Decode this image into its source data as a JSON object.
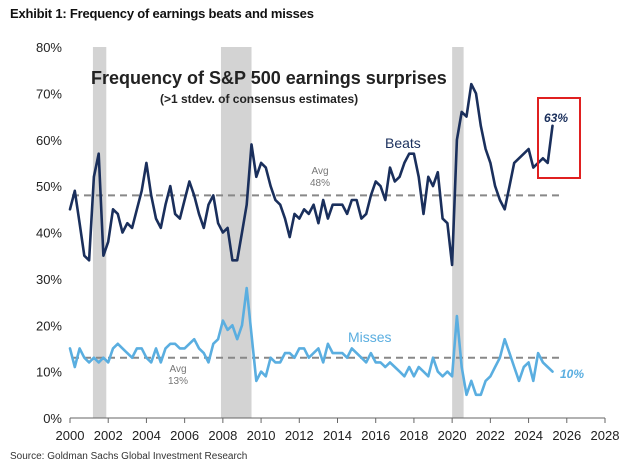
{
  "exhibit_title": "Exhibit 1: Frequency of earnings beats and misses",
  "source": "Source: Goldman Sachs Global Investment Research",
  "chart_data": {
    "type": "line",
    "title": "Frequency of S&P 500 earnings surprises",
    "subtitle": "(>1 stdev. of consensus estimates)",
    "xlabel": "",
    "ylabel": "",
    "xlim": [
      2000,
      2028
    ],
    "ylim": [
      0,
      80
    ],
    "x_ticks": [
      "2000",
      "2002",
      "2004",
      "2006",
      "2008",
      "2010",
      "2012",
      "2014",
      "2016",
      "2018",
      "2020",
      "2022",
      "2024",
      "2026",
      "2028"
    ],
    "y_ticks": [
      "0%",
      "10%",
      "20%",
      "30%",
      "40%",
      "50%",
      "60%",
      "70%",
      "80%"
    ],
    "recessions": [
      [
        2001.2,
        2001.9
      ],
      [
        2007.9,
        2009.5
      ],
      [
        2020.0,
        2020.6
      ]
    ],
    "colors": {
      "beats": "#1a2f5c",
      "misses": "#5aaee0",
      "avg": "#888888",
      "recession": "#d3d3d3",
      "highlight": "#e02020"
    },
    "series": [
      {
        "name": "Beats",
        "x": [
          2000.0,
          2000.25,
          2000.5,
          2000.75,
          2001.0,
          2001.25,
          2001.5,
          2001.75,
          2002.0,
          2002.25,
          2002.5,
          2002.75,
          2003.0,
          2003.25,
          2003.5,
          2003.75,
          2004.0,
          2004.25,
          2004.5,
          2004.75,
          2005.0,
          2005.25,
          2005.5,
          2005.75,
          2006.0,
          2006.25,
          2006.5,
          2006.75,
          2007.0,
          2007.25,
          2007.5,
          2007.75,
          2008.0,
          2008.25,
          2008.5,
          2008.75,
          2009.0,
          2009.25,
          2009.5,
          2009.75,
          2010.0,
          2010.25,
          2010.5,
          2010.75,
          2011.0,
          2011.25,
          2011.5,
          2011.75,
          2012.0,
          2012.25,
          2012.5,
          2012.75,
          2013.0,
          2013.25,
          2013.5,
          2013.75,
          2014.0,
          2014.25,
          2014.5,
          2014.75,
          2015.0,
          2015.25,
          2015.5,
          2015.75,
          2016.0,
          2016.25,
          2016.5,
          2016.75,
          2017.0,
          2017.25,
          2017.5,
          2017.75,
          2018.0,
          2018.25,
          2018.5,
          2018.75,
          2019.0,
          2019.25,
          2019.5,
          2019.75,
          2020.0,
          2020.25,
          2020.5,
          2020.75,
          2021.0,
          2021.25,
          2021.5,
          2021.75,
          2022.0,
          2022.25,
          2022.5,
          2022.75,
          2023.0,
          2023.25,
          2023.5,
          2023.75,
          2024.0,
          2024.25,
          2024.5,
          2024.75,
          2025.0,
          2025.25
        ],
        "values": [
          45,
          49,
          42,
          35,
          34,
          52,
          57,
          35,
          38,
          45,
          44,
          40,
          42,
          41,
          45,
          49,
          55,
          48,
          43,
          41,
          46,
          50,
          44,
          43,
          47,
          51,
          48,
          44,
          41,
          46,
          48,
          42,
          40,
          41,
          34,
          34,
          40,
          46,
          59,
          52,
          55,
          54,
          50,
          47,
          46,
          43,
          39,
          44,
          43,
          45,
          44,
          46,
          42,
          47,
          43,
          46,
          46,
          46,
          44,
          47,
          47,
          43,
          44,
          48,
          51,
          50,
          47,
          54,
          51,
          52,
          55,
          57,
          57,
          52,
          44,
          52,
          50,
          53,
          43,
          42,
          33,
          60,
          66,
          65,
          72,
          70,
          63,
          58,
          55,
          50,
          47,
          45,
          50,
          55,
          56,
          57,
          58,
          54,
          55,
          56,
          55,
          63
        ],
        "end_label": "63%"
      },
      {
        "name": "Misses",
        "x": [
          2000.0,
          2000.25,
          2000.5,
          2000.75,
          2001.0,
          2001.25,
          2001.5,
          2001.75,
          2002.0,
          2002.25,
          2002.5,
          2002.75,
          2003.0,
          2003.25,
          2003.5,
          2003.75,
          2004.0,
          2004.25,
          2004.5,
          2004.75,
          2005.0,
          2005.25,
          2005.5,
          2005.75,
          2006.0,
          2006.25,
          2006.5,
          2006.75,
          2007.0,
          2007.25,
          2007.5,
          2007.75,
          2008.0,
          2008.25,
          2008.5,
          2008.75,
          2009.0,
          2009.25,
          2009.5,
          2009.75,
          2010.0,
          2010.25,
          2010.5,
          2010.75,
          2011.0,
          2011.25,
          2011.5,
          2011.75,
          2012.0,
          2012.25,
          2012.5,
          2012.75,
          2013.0,
          2013.25,
          2013.5,
          2013.75,
          2014.0,
          2014.25,
          2014.5,
          2014.75,
          2015.0,
          2015.25,
          2015.5,
          2015.75,
          2016.0,
          2016.25,
          2016.5,
          2016.75,
          2017.0,
          2017.25,
          2017.5,
          2017.75,
          2018.0,
          2018.25,
          2018.5,
          2018.75,
          2019.0,
          2019.25,
          2019.5,
          2019.75,
          2020.0,
          2020.25,
          2020.5,
          2020.75,
          2021.0,
          2021.25,
          2021.5,
          2021.75,
          2022.0,
          2022.25,
          2022.5,
          2022.75,
          2023.0,
          2023.25,
          2023.5,
          2023.75,
          2024.0,
          2024.25,
          2024.5,
          2024.75,
          2025.0,
          2025.25
        ],
        "values": [
          15,
          11,
          15,
          13,
          12,
          13,
          12,
          13,
          12,
          15,
          16,
          15,
          14,
          13,
          15,
          15,
          13,
          12,
          15,
          12,
          15,
          16,
          16,
          15,
          15,
          16,
          17,
          15,
          14,
          12,
          16,
          17,
          21,
          19,
          20,
          17,
          20,
          28,
          18,
          8,
          10,
          9,
          13,
          12,
          12,
          14,
          14,
          13,
          15,
          15,
          13,
          14,
          15,
          12,
          16,
          14,
          14,
          14,
          13,
          15,
          14,
          13,
          12,
          14,
          12,
          12,
          11,
          12,
          11,
          10,
          9,
          11,
          9,
          11,
          10,
          9,
          13,
          10,
          9,
          10,
          9,
          22,
          11,
          5,
          8,
          5,
          5,
          8,
          9,
          11,
          13,
          17,
          14,
          11,
          8,
          11,
          12,
          8,
          14,
          12,
          11,
          10
        ],
        "end_label": "10%"
      }
    ],
    "averages": [
      {
        "name": "Avg",
        "value": 48,
        "label_line1": "Avg",
        "label_line2": "48%"
      },
      {
        "name": "Avg",
        "value": 13,
        "label_line1": "Avg",
        "label_line2": "13%"
      }
    ]
  }
}
